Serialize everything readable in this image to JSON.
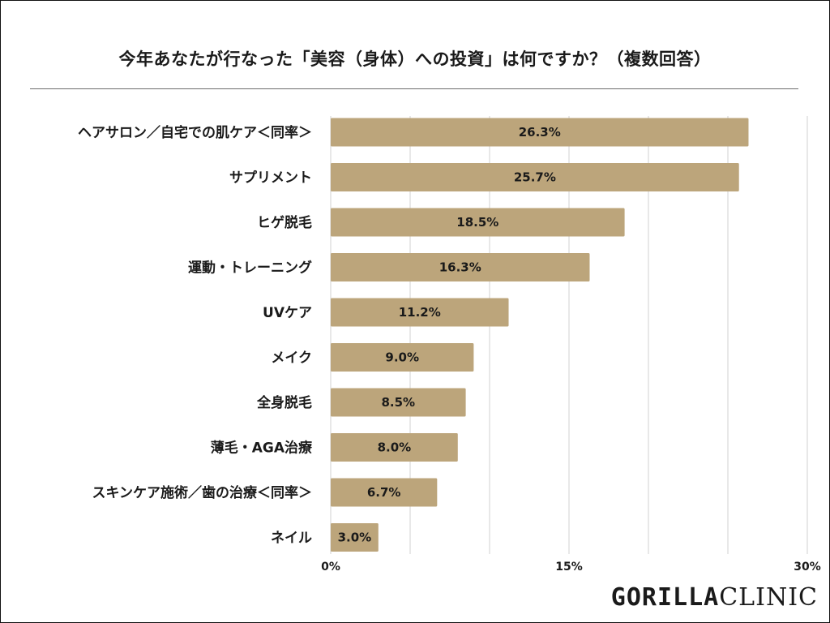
{
  "title": "今年あなたが行なった「美容（身体）への投資」は何ですか？（複数回答）",
  "chart_data": {
    "type": "bar",
    "orientation": "horizontal",
    "categories": [
      "ヘアサロン／自宅での肌ケア＜同率＞",
      "サプリメント",
      "ヒゲ脱毛",
      "運動・トレーニング",
      "UVケア",
      "メイク",
      "全身脱毛",
      "薄毛・AGA治療",
      "スキンケア施術／歯の治療＜同率＞",
      "ネイル"
    ],
    "values": [
      26.3,
      25.7,
      18.5,
      16.3,
      11.2,
      9.0,
      8.5,
      8.0,
      6.7,
      3.0
    ],
    "value_labels": [
      "26.3%",
      "25.7%",
      "18.5%",
      "16.3%",
      "11.2%",
      "9.0%",
      "8.5%",
      "8.0%",
      "6.7%",
      "3.0%"
    ],
    "xlim": [
      0,
      30
    ],
    "gridlines": [
      0,
      5,
      10,
      15,
      20,
      25,
      30
    ],
    "x_ticks": [
      0,
      15,
      30
    ],
    "x_tick_labels": [
      "0%",
      "15%",
      "30%"
    ],
    "grid": true,
    "bar_color": "#bca57b",
    "grid_color": "#d0d0d0"
  },
  "brand": {
    "bold": "GORILLA",
    "light": "CLINIC"
  }
}
